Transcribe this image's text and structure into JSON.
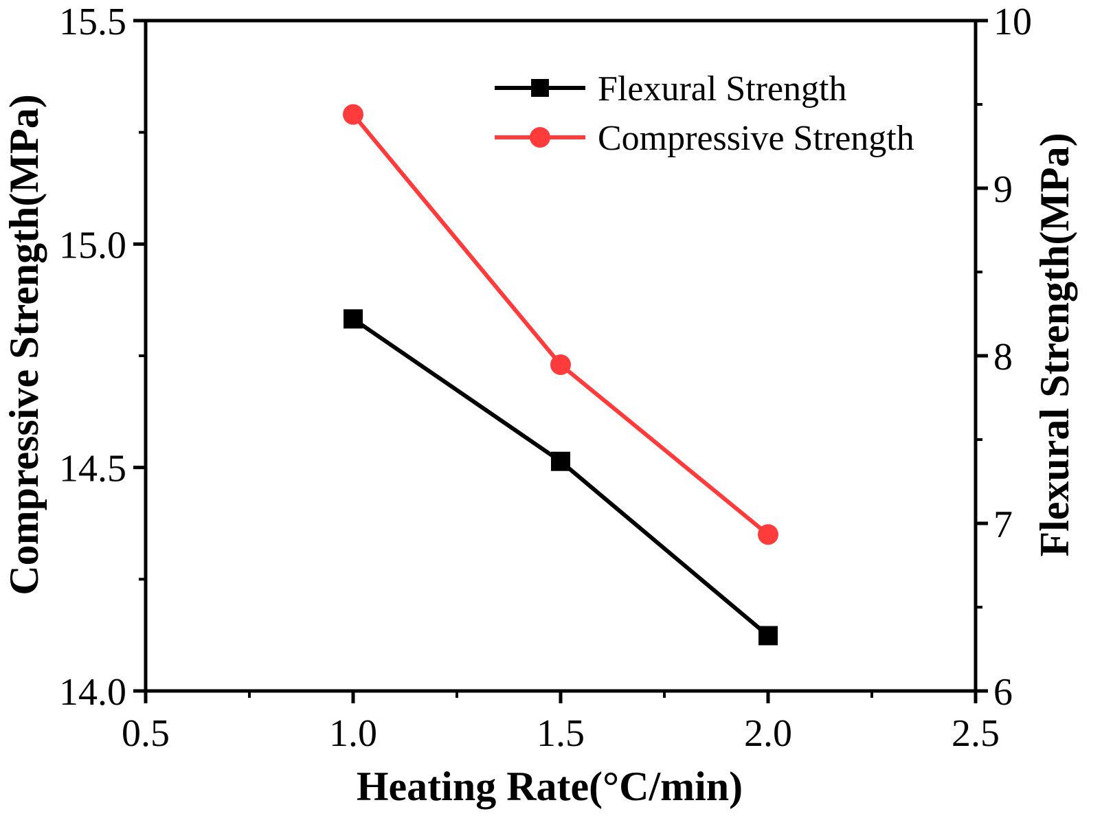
{
  "chart_data": {
    "type": "line",
    "x": [
      1.0,
      1.5,
      2.0
    ],
    "xlabel": "Heating Rate(°C/min)",
    "xlim": [
      0.5,
      2.5
    ],
    "xticks": [
      "0.5",
      "1.0",
      "1.5",
      "2.0",
      "2.5"
    ],
    "ylabel_left": "Compressive Strength(MPa)",
    "ylim_left": [
      14.0,
      15.5
    ],
    "yticks_left": [
      "14.0",
      "14.5",
      "15.0",
      "15.5"
    ],
    "ylabel_right": "Flexural Strength(MPa)",
    "ylim_right": [
      6,
      10
    ],
    "yticks_right": [
      "6",
      "7",
      "8",
      "9",
      "10"
    ],
    "series": [
      {
        "name": "Flexural Strength",
        "axis": "right",
        "color": "#000000",
        "marker": "square",
        "values": [
          8.22,
          7.37,
          6.33
        ]
      },
      {
        "name": "Compressive Strength",
        "axis": "left",
        "color": "#ff3b3b",
        "marker": "circle",
        "values": [
          15.29,
          14.73,
          14.35
        ]
      }
    ],
    "legend_position": "top-right",
    "grid": false
  }
}
